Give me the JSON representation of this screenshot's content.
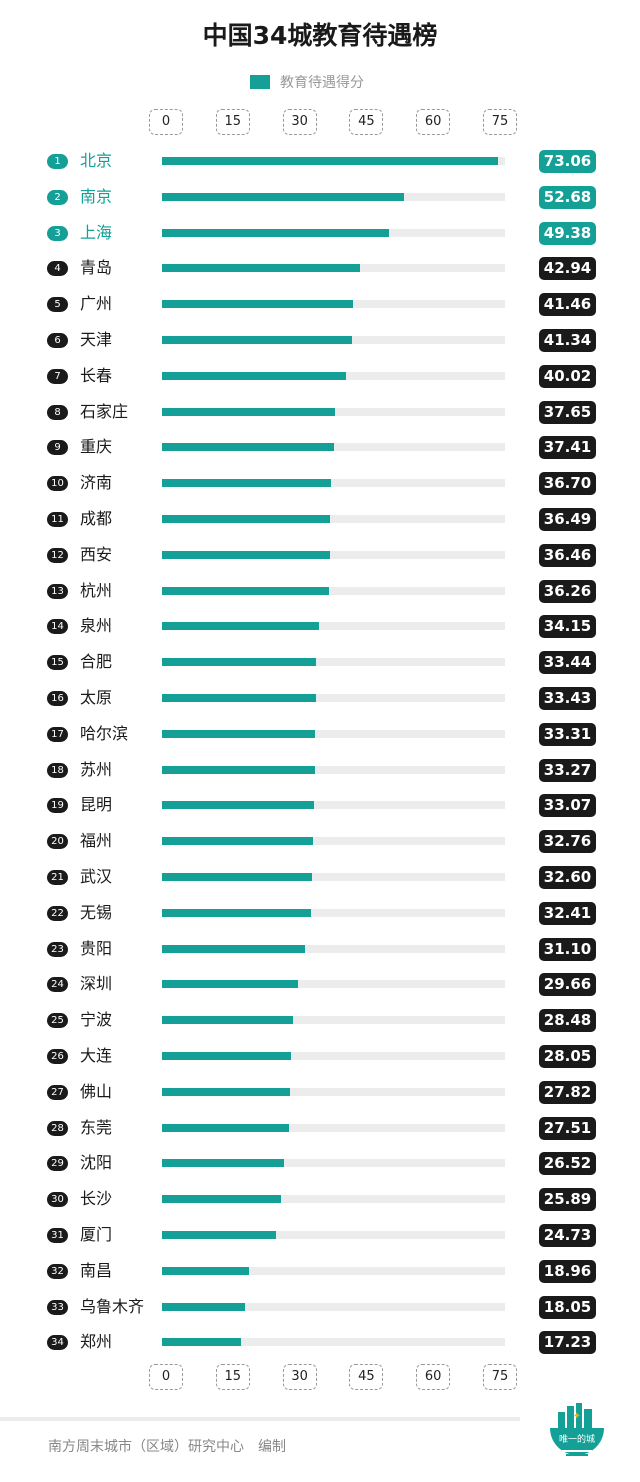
{
  "chart_data": {
    "type": "bar",
    "title": "中国34城教育待遇榜",
    "legend": [
      "教育待遇得分"
    ],
    "xlim": [
      0,
      75
    ],
    "ticks": [
      "0",
      "15",
      "30",
      "45",
      "60",
      "75"
    ],
    "categories": [
      "北京",
      "南京",
      "上海",
      "青岛",
      "广州",
      "天津",
      "长春",
      "石家庄",
      "重庆",
      "济南",
      "成都",
      "西安",
      "杭州",
      "泉州",
      "合肥",
      "太原",
      "哈尔滨",
      "苏州",
      "昆明",
      "福州",
      "武汉",
      "无锡",
      "贵阳",
      "深圳",
      "宁波",
      "大连",
      "佛山",
      "东莞",
      "沈阳",
      "长沙",
      "厦门",
      "南昌",
      "乌鲁木齐",
      "郑州"
    ],
    "values": [
      73.06,
      52.68,
      49.38,
      42.94,
      41.46,
      41.34,
      40.02,
      37.65,
      37.41,
      36.7,
      36.49,
      36.46,
      36.26,
      34.15,
      33.44,
      33.43,
      33.31,
      33.27,
      33.07,
      32.76,
      32.6,
      32.41,
      31.1,
      29.66,
      28.48,
      28.05,
      27.82,
      27.51,
      26.52,
      25.89,
      24.73,
      18.96,
      18.05,
      17.23
    ],
    "value_labels": [
      "73.06",
      "52.68",
      "49.38",
      "42.94",
      "41.46",
      "41.34",
      "40.02",
      "37.65",
      "37.41",
      "36.70",
      "36.49",
      "36.46",
      "36.26",
      "34.15",
      "33.44",
      "33.43",
      "33.31",
      "33.27",
      "33.07",
      "32.76",
      "32.60",
      "32.41",
      "31.10",
      "29.66",
      "28.48",
      "28.05",
      "27.82",
      "27.51",
      "26.52",
      "25.89",
      "24.73",
      "18.96",
      "18.05",
      "17.23"
    ],
    "colors": {
      "accent": "#14a096",
      "dark": "#1a1a1a",
      "track": "#ececec"
    }
  },
  "footer": "南方周末城市（区域）研究中心　编制",
  "logo_text": "唯一的城"
}
